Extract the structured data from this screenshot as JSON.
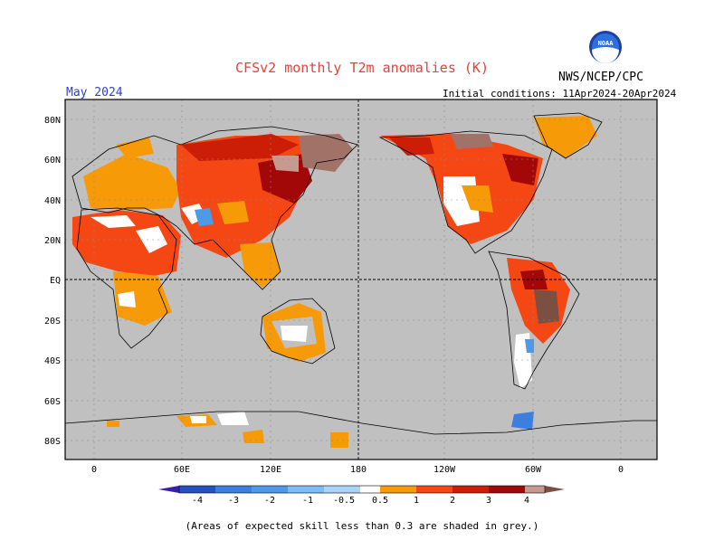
{
  "header": {
    "title": "CFSv2 monthly T2m anomalies (K)",
    "agency": "NWS/NCEP/CPC",
    "logo_text": "NOAA",
    "period": "May 2024",
    "initial_conditions": "Initial conditions: 11Apr2024-20Apr2024"
  },
  "axes": {
    "lat_labels": [
      "80N",
      "60N",
      "40N",
      "20N",
      "EQ",
      "20S",
      "40S",
      "60S",
      "80S"
    ],
    "lon_labels": [
      "0",
      "60E",
      "120E",
      "180",
      "120W",
      "60W",
      "0"
    ]
  },
  "legend": {
    "labels": [
      "-4",
      "-3",
      "-2",
      "-1",
      "-0.5",
      "0.5",
      "1",
      "2",
      "3",
      "4"
    ],
    "colors": [
      "#3a1fa8",
      "#2451c2",
      "#3d7fe0",
      "#4d9ae8",
      "#7ebcf5",
      "#ffffff",
      "#f79a07",
      "#f54714",
      "#cc1e06",
      "#a30808",
      "#c69a8e",
      "#7b5042"
    ]
  },
  "footer": {
    "note": "(Areas of expected skill less than 0.3 are shaded in grey.)"
  },
  "colors": {
    "skill_grey": "#c0c0c0",
    "title_red": "#e0433b",
    "period_blue": "#2b3fd6"
  }
}
